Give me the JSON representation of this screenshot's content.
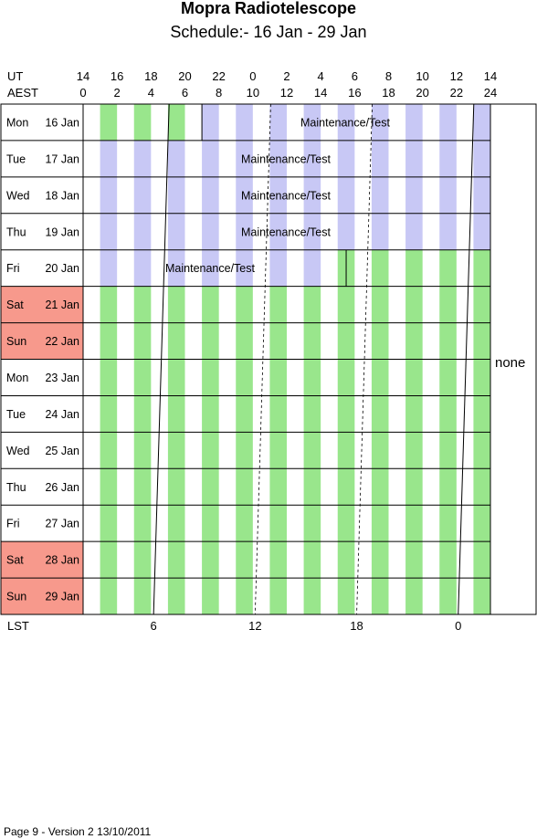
{
  "chart_data": {
    "type": "table",
    "title": "Mopra Radiotelescope",
    "subtitle": "Schedule:- 16 Jan - 29 Jan",
    "row_labels": {
      "ut": "UT",
      "aest": "AEST",
      "lst": "LST"
    },
    "ut_ticks": [
      "14",
      "16",
      "18",
      "20",
      "22",
      "0",
      "2",
      "4",
      "6",
      "8",
      "10",
      "12",
      "14"
    ],
    "aest_ticks": [
      "0",
      "2",
      "4",
      "6",
      "8",
      "10",
      "12",
      "14",
      "16",
      "18",
      "20",
      "22",
      "24"
    ],
    "lst_ticks": [
      "12",
      "18",
      "0",
      "6"
    ],
    "days": [
      {
        "name": "Mon",
        "date": "16 Jan",
        "weekend": false
      },
      {
        "name": "Tue",
        "date": "17 Jan",
        "weekend": false
      },
      {
        "name": "Wed",
        "date": "18 Jan",
        "weekend": false
      },
      {
        "name": "Thu",
        "date": "19 Jan",
        "weekend": false
      },
      {
        "name": "Fri",
        "date": "20 Jan",
        "weekend": false
      },
      {
        "name": "Sat",
        "date": "21 Jan",
        "weekend": true
      },
      {
        "name": "Sun",
        "date": "22 Jan",
        "weekend": true
      },
      {
        "name": "Mon",
        "date": "23 Jan",
        "weekend": false
      },
      {
        "name": "Tue",
        "date": "24 Jan",
        "weekend": false
      },
      {
        "name": "Wed",
        "date": "25 Jan",
        "weekend": false
      },
      {
        "name": "Thu",
        "date": "26 Jan",
        "weekend": false
      },
      {
        "name": "Fri",
        "date": "27 Jan",
        "weekend": false
      },
      {
        "name": "Sat",
        "date": "28 Jan",
        "weekend": true
      },
      {
        "name": "Sun",
        "date": "29 Jan",
        "weekend": true
      }
    ],
    "blocks": [
      {
        "day_start": 0,
        "day_end": 0,
        "aest_start": 0,
        "aest_end": 7,
        "label": "",
        "kind": "observe"
      },
      {
        "day_start": 0,
        "day_end": 0,
        "aest_start": 7,
        "aest_end": 24,
        "label": "Maintenance/Test",
        "kind": "maintenance"
      },
      {
        "day_start": 1,
        "day_end": 3,
        "aest_start": 0,
        "aest_end": 24,
        "label": "Maintenance/Test",
        "kind": "maintenance"
      },
      {
        "day_start": 4,
        "day_end": 4,
        "aest_start": 0,
        "aest_end": 15,
        "label": "Maintenance/Test",
        "kind": "maintenance"
      },
      {
        "day_start": 4,
        "day_end": 4,
        "aest_start": 15,
        "aest_end": 24,
        "label": "",
        "kind": "observe"
      },
      {
        "day_start": 5,
        "day_end": 13,
        "aest_start": 0,
        "aest_end": 24,
        "label": "",
        "kind": "observe"
      }
    ],
    "side_label": "none",
    "colors": {
      "observe_stripe": "#99e68c",
      "maintenance_stripe": "#c8c8f5",
      "weekend": "#f7998c",
      "grid": "#000000"
    }
  },
  "footer": "Page 9 - Version 2  13/10/2011"
}
